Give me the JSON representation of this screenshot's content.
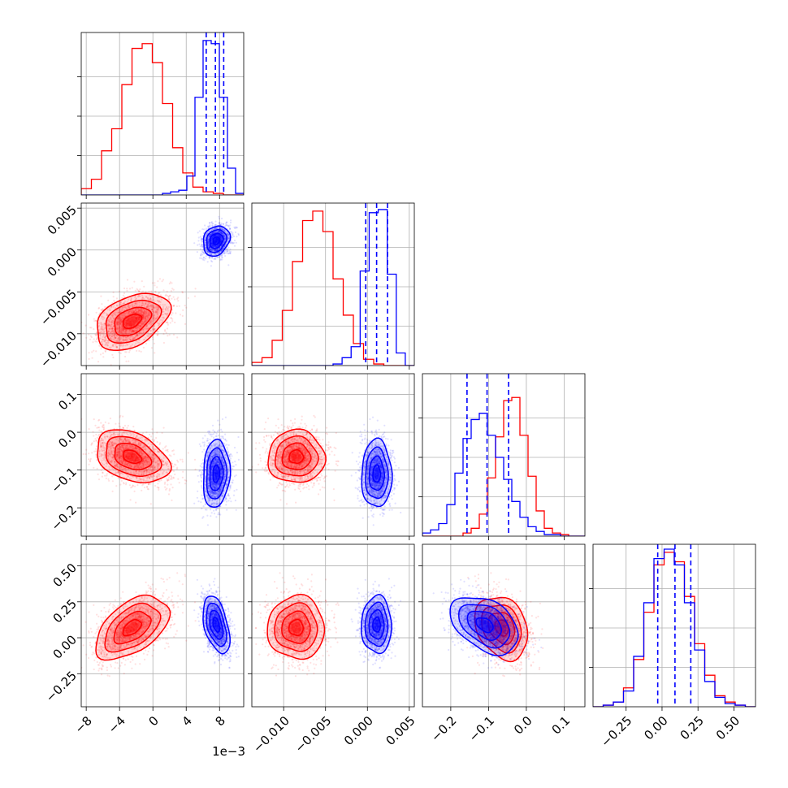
{
  "chart_data": {
    "type": "corner",
    "colors": {
      "series_a": "#ff0000",
      "series_b": "#0000ff"
    },
    "grid": true,
    "offset_label": "1e−3",
    "axes": [
      {
        "range": [
          -8.6,
          10.9
        ],
        "ticks": [
          -8,
          -4,
          0,
          4,
          8
        ],
        "tick_labels": [
          "−8",
          "−4",
          "0",
          "4",
          "8"
        ]
      },
      {
        "range": [
          -0.0138,
          0.0056
        ],
        "ticks": [
          -0.01,
          -0.005,
          0.0,
          0.005
        ],
        "tick_labels": [
          "−0.010",
          "−0.005",
          "0.000",
          "0.005"
        ]
      },
      {
        "range": [
          -0.275,
          0.155
        ],
        "ticks": [
          -0.2,
          -0.1,
          0.0,
          0.1
        ],
        "tick_labels": [
          "−0.2",
          "−0.1",
          "0.0",
          "0.1"
        ]
      },
      {
        "range": [
          -0.48,
          0.65
        ],
        "ticks": [
          -0.25,
          0.0,
          0.25,
          0.5
        ],
        "tick_labels": [
          "−0.25",
          "0.00",
          "0.25",
          "0.50"
        ]
      }
    ],
    "series": [
      {
        "color": "#ff0000",
        "mean": [
          -2.5,
          -0.0085,
          -0.065,
          0.07
        ],
        "std": [
          2.2,
          0.0017,
          0.035,
          0.11
        ],
        "corr": [
          [
            1,
            0.4,
            -0.35,
            0.5
          ],
          [
            0.4,
            1,
            0,
            0
          ],
          [
            -0.35,
            0,
            1,
            -0.25
          ],
          [
            0.5,
            0,
            -0.25,
            1
          ]
        ]
      },
      {
        "color": "#0000ff",
        "mean": [
          7.6,
          0.0011,
          -0.11,
          0.09
        ],
        "std": [
          0.8,
          0.0009,
          0.045,
          0.1
        ],
        "corr": [
          [
            1,
            0.2,
            0.1,
            -0.45
          ],
          [
            0.2,
            1,
            0,
            0
          ],
          [
            0.1,
            0,
            1,
            -0.4
          ],
          [
            -0.45,
            0,
            -0.4,
            1
          ]
        ]
      }
    ],
    "hist_a": [
      [
        0.04,
        0.1,
        0.28,
        0.42,
        0.7,
        0.93,
        0.96,
        0.84,
        0.58,
        0.3,
        0.14,
        0.05,
        0.02,
        0.01,
        0,
        0
      ],
      [
        0.02,
        0.05,
        0.16,
        0.35,
        0.66,
        0.92,
        0.98,
        0.85,
        0.55,
        0.32,
        0.14,
        0.04,
        0.01,
        0,
        0,
        0
      ],
      [
        0,
        0,
        0,
        0,
        0,
        0.02,
        0.05,
        0.14,
        0.37,
        0.63,
        0.86,
        0.88,
        0.64,
        0.38,
        0.16,
        0.05,
        0.02,
        0.01,
        0,
        0
      ],
      [
        0,
        0.01,
        0.03,
        0.12,
        0.3,
        0.6,
        0.9,
        0.98,
        0.92,
        0.7,
        0.4,
        0.2,
        0.07,
        0.03,
        0.01,
        0
      ]
    ],
    "hist_b": [
      [
        0,
        0,
        0,
        0,
        0,
        0,
        0,
        0,
        0,
        0,
        0.01,
        0.02,
        0.03,
        0.12,
        0.62,
        0.98,
        0.96,
        0.62,
        0.17,
        0.01
      ],
      [
        0,
        0,
        0,
        0,
        0,
        0,
        0,
        0,
        0,
        0.01,
        0.05,
        0.12,
        0.6,
        0.97,
        0.99,
        0.58,
        0.08,
        0
      ],
      [
        0.02,
        0.04,
        0.08,
        0.2,
        0.4,
        0.62,
        0.74,
        0.78,
        0.64,
        0.5,
        0.36,
        0.22,
        0.12,
        0.06,
        0.03,
        0.01,
        0.01,
        0,
        0,
        0
      ],
      [
        0,
        0.01,
        0.03,
        0.1,
        0.32,
        0.66,
        0.94,
        1.0,
        0.9,
        0.66,
        0.36,
        0.16,
        0.06,
        0.02,
        0.01,
        0
      ]
    ],
    "quantiles": [
      [
        6.4,
        7.5,
        8.5
      ],
      [
        -0.0002,
        0.0011,
        0.0024
      ],
      [
        -0.157,
        -0.104,
        -0.047
      ],
      [
        -0.03,
        0.09,
        0.2
      ]
    ]
  }
}
